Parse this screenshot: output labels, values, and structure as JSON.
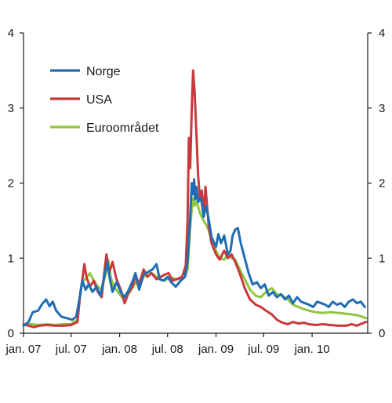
{
  "chart_data": {
    "type": "line",
    "title": "",
    "xlabel": "",
    "ylabel": "",
    "ylim": [
      0,
      4
    ],
    "yticks": [
      "0",
      "1",
      "2",
      "3",
      "4"
    ],
    "y_ticks_right": true,
    "xlim": [
      "2007-01-01",
      "2010-07-31"
    ],
    "xticks": [
      {
        "date": "2007-01-01",
        "label": "jan. 07"
      },
      {
        "date": "2007-07-01",
        "label": "jul. 07"
      },
      {
        "date": "2008-01-01",
        "label": "jan. 08"
      },
      {
        "date": "2008-07-01",
        "label": "jul. 08"
      },
      {
        "date": "2009-01-01",
        "label": "jan. 09"
      },
      {
        "date": "2009-07-01",
        "label": "jul. 09"
      },
      {
        "date": "2010-01-01",
        "label": "jan. 10"
      }
    ],
    "grid": false,
    "legend_position": "top-left",
    "series": [
      {
        "name": "Norge",
        "color": "#1f6eb5",
        "points": [
          [
            "2007-01-01",
            0.1
          ],
          [
            "2007-01-20",
            0.15
          ],
          [
            "2007-02-05",
            0.28
          ],
          [
            "2007-02-25",
            0.3
          ],
          [
            "2007-03-15",
            0.4
          ],
          [
            "2007-03-28",
            0.45
          ],
          [
            "2007-04-10",
            0.36
          ],
          [
            "2007-04-22",
            0.42
          ],
          [
            "2007-05-05",
            0.3
          ],
          [
            "2007-05-25",
            0.22
          ],
          [
            "2007-06-15",
            0.2
          ],
          [
            "2007-07-05",
            0.18
          ],
          [
            "2007-07-20",
            0.22
          ],
          [
            "2007-08-05",
            0.52
          ],
          [
            "2007-08-12",
            0.7
          ],
          [
            "2007-08-25",
            0.58
          ],
          [
            "2007-09-05",
            0.65
          ],
          [
            "2007-09-20",
            0.55
          ],
          [
            "2007-10-05",
            0.62
          ],
          [
            "2007-10-20",
            0.5
          ],
          [
            "2007-11-05",
            0.78
          ],
          [
            "2007-11-15",
            0.95
          ],
          [
            "2007-11-25",
            0.72
          ],
          [
            "2007-12-05",
            0.55
          ],
          [
            "2007-12-20",
            0.68
          ],
          [
            "2008-01-05",
            0.55
          ],
          [
            "2008-01-20",
            0.48
          ],
          [
            "2008-02-05",
            0.58
          ],
          [
            "2008-02-20",
            0.7
          ],
          [
            "2008-03-01",
            0.8
          ],
          [
            "2008-03-15",
            0.58
          ],
          [
            "2008-04-01",
            0.78
          ],
          [
            "2008-04-20",
            0.82
          ],
          [
            "2008-05-05",
            0.85
          ],
          [
            "2008-05-20",
            0.92
          ],
          [
            "2008-06-01",
            0.72
          ],
          [
            "2008-06-15",
            0.7
          ],
          [
            "2008-07-01",
            0.75
          ],
          [
            "2008-07-15",
            0.68
          ],
          [
            "2008-08-01",
            0.62
          ],
          [
            "2008-08-20",
            0.7
          ],
          [
            "2008-09-05",
            0.75
          ],
          [
            "2008-09-15",
            0.95
          ],
          [
            "2008-09-25",
            1.55
          ],
          [
            "2008-10-01",
            2.0
          ],
          [
            "2008-10-06",
            1.85
          ],
          [
            "2008-10-10",
            2.05
          ],
          [
            "2008-10-14",
            1.78
          ],
          [
            "2008-10-18",
            1.95
          ],
          [
            "2008-10-25",
            1.75
          ],
          [
            "2008-11-05",
            1.8
          ],
          [
            "2008-11-15",
            1.55
          ],
          [
            "2008-11-25",
            1.7
          ],
          [
            "2008-12-05",
            1.5
          ],
          [
            "2008-12-15",
            1.28
          ],
          [
            "2009-01-01",
            1.15
          ],
          [
            "2009-01-10",
            1.32
          ],
          [
            "2009-01-20",
            1.2
          ],
          [
            "2009-02-01",
            1.3
          ],
          [
            "2009-02-15",
            1.05
          ],
          [
            "2009-02-25",
            1.1
          ],
          [
            "2009-03-05",
            1.3
          ],
          [
            "2009-03-15",
            1.38
          ],
          [
            "2009-03-25",
            1.4
          ],
          [
            "2009-04-05",
            1.2
          ],
          [
            "2009-04-20",
            1.0
          ],
          [
            "2009-05-05",
            0.8
          ],
          [
            "2009-05-20",
            0.65
          ],
          [
            "2009-06-05",
            0.68
          ],
          [
            "2009-06-20",
            0.6
          ],
          [
            "2009-07-05",
            0.65
          ],
          [
            "2009-07-20",
            0.5
          ],
          [
            "2009-08-05",
            0.55
          ],
          [
            "2009-08-20",
            0.48
          ],
          [
            "2009-09-05",
            0.52
          ],
          [
            "2009-09-20",
            0.45
          ],
          [
            "2009-10-05",
            0.5
          ],
          [
            "2009-10-20",
            0.4
          ],
          [
            "2009-11-05",
            0.48
          ],
          [
            "2009-11-20",
            0.42
          ],
          [
            "2009-12-05",
            0.4
          ],
          [
            "2009-12-20",
            0.38
          ],
          [
            "2010-01-05",
            0.35
          ],
          [
            "2010-01-20",
            0.42
          ],
          [
            "2010-02-05",
            0.4
          ],
          [
            "2010-02-20",
            0.38
          ],
          [
            "2010-03-05",
            0.35
          ],
          [
            "2010-03-20",
            0.42
          ],
          [
            "2010-04-05",
            0.38
          ],
          [
            "2010-04-20",
            0.4
          ],
          [
            "2010-05-05",
            0.35
          ],
          [
            "2010-05-20",
            0.42
          ],
          [
            "2010-06-05",
            0.45
          ],
          [
            "2010-06-20",
            0.4
          ],
          [
            "2010-07-05",
            0.42
          ],
          [
            "2010-07-20",
            0.35
          ]
        ]
      },
      {
        "name": "USA",
        "color": "#c8383d",
        "points": [
          [
            "2007-01-01",
            0.12
          ],
          [
            "2007-01-20",
            0.1
          ],
          [
            "2007-02-10",
            0.08
          ],
          [
            "2007-03-01",
            0.1
          ],
          [
            "2007-04-01",
            0.11
          ],
          [
            "2007-05-01",
            0.1
          ],
          [
            "2007-06-01",
            0.1
          ],
          [
            "2007-07-01",
            0.11
          ],
          [
            "2007-07-25",
            0.15
          ],
          [
            "2007-08-05",
            0.55
          ],
          [
            "2007-08-12",
            0.7
          ],
          [
            "2007-08-20",
            0.92
          ],
          [
            "2007-08-28",
            0.75
          ],
          [
            "2007-09-10",
            0.62
          ],
          [
            "2007-09-25",
            0.7
          ],
          [
            "2007-10-10",
            0.55
          ],
          [
            "2007-10-25",
            0.48
          ],
          [
            "2007-11-05",
            0.85
          ],
          [
            "2007-11-12",
            1.05
          ],
          [
            "2007-11-22",
            0.8
          ],
          [
            "2007-12-05",
            0.95
          ],
          [
            "2007-12-20",
            0.72
          ],
          [
            "2008-01-05",
            0.58
          ],
          [
            "2008-01-20",
            0.4
          ],
          [
            "2008-02-05",
            0.55
          ],
          [
            "2008-02-20",
            0.62
          ],
          [
            "2008-03-01",
            0.78
          ],
          [
            "2008-03-15",
            0.65
          ],
          [
            "2008-04-01",
            0.85
          ],
          [
            "2008-04-15",
            0.75
          ],
          [
            "2008-05-01",
            0.8
          ],
          [
            "2008-05-20",
            0.72
          ],
          [
            "2008-06-05",
            0.75
          ],
          [
            "2008-06-20",
            0.78
          ],
          [
            "2008-07-05",
            0.8
          ],
          [
            "2008-07-20",
            0.7
          ],
          [
            "2008-08-05",
            0.72
          ],
          [
            "2008-08-25",
            0.75
          ],
          [
            "2008-09-08",
            0.9
          ],
          [
            "2008-09-15",
            1.5
          ],
          [
            "2008-09-20",
            2.6
          ],
          [
            "2008-09-25",
            2.2
          ],
          [
            "2008-10-01",
            3.0
          ],
          [
            "2008-10-06",
            3.5
          ],
          [
            "2008-10-12",
            3.2
          ],
          [
            "2008-10-18",
            2.7
          ],
          [
            "2008-10-25",
            2.1
          ],
          [
            "2008-11-01",
            1.8
          ],
          [
            "2008-11-08",
            1.9
          ],
          [
            "2008-11-15",
            1.6
          ],
          [
            "2008-11-22",
            1.95
          ],
          [
            "2008-11-28",
            1.7
          ],
          [
            "2008-12-05",
            1.4
          ],
          [
            "2008-12-15",
            1.2
          ],
          [
            "2009-01-01",
            1.05
          ],
          [
            "2009-01-15",
            0.98
          ],
          [
            "2009-02-01",
            1.1
          ],
          [
            "2009-02-15",
            1.0
          ],
          [
            "2009-03-01",
            1.05
          ],
          [
            "2009-03-15",
            0.95
          ],
          [
            "2009-04-01",
            0.8
          ],
          [
            "2009-04-20",
            0.6
          ],
          [
            "2009-05-10",
            0.45
          ],
          [
            "2009-06-01",
            0.38
          ],
          [
            "2009-06-20",
            0.35
          ],
          [
            "2009-07-10",
            0.3
          ],
          [
            "2009-08-01",
            0.25
          ],
          [
            "2009-08-20",
            0.18
          ],
          [
            "2009-09-10",
            0.14
          ],
          [
            "2009-10-01",
            0.12
          ],
          [
            "2009-10-20",
            0.15
          ],
          [
            "2009-11-10",
            0.13
          ],
          [
            "2009-12-01",
            0.14
          ],
          [
            "2009-12-20",
            0.12
          ],
          [
            "2010-01-15",
            0.11
          ],
          [
            "2010-02-10",
            0.12
          ],
          [
            "2010-03-10",
            0.11
          ],
          [
            "2010-04-10",
            0.1
          ],
          [
            "2010-05-10",
            0.1
          ],
          [
            "2010-06-01",
            0.12
          ],
          [
            "2010-06-20",
            0.1
          ],
          [
            "2010-07-10",
            0.13
          ],
          [
            "2010-07-25",
            0.15
          ]
        ]
      },
      {
        "name": "Euroområdet",
        "color": "#8dc63f",
        "points": [
          [
            "2007-01-01",
            0.12
          ],
          [
            "2007-02-01",
            0.12
          ],
          [
            "2007-03-01",
            0.11
          ],
          [
            "2007-04-01",
            0.12
          ],
          [
            "2007-05-01",
            0.11
          ],
          [
            "2007-06-01",
            0.12
          ],
          [
            "2007-07-01",
            0.12
          ],
          [
            "2007-07-25",
            0.18
          ],
          [
            "2007-08-05",
            0.55
          ],
          [
            "2007-08-15",
            0.7
          ],
          [
            "2007-08-25",
            0.72
          ],
          [
            "2007-09-10",
            0.8
          ],
          [
            "2007-09-25",
            0.7
          ],
          [
            "2007-10-10",
            0.62
          ],
          [
            "2007-10-25",
            0.58
          ],
          [
            "2007-11-10",
            0.8
          ],
          [
            "2007-11-18",
            0.98
          ],
          [
            "2007-11-28",
            0.75
          ],
          [
            "2007-12-10",
            0.62
          ],
          [
            "2007-12-25",
            0.55
          ],
          [
            "2008-01-10",
            0.48
          ],
          [
            "2008-01-25",
            0.5
          ],
          [
            "2008-02-10",
            0.55
          ],
          [
            "2008-03-01",
            0.68
          ],
          [
            "2008-03-15",
            0.62
          ],
          [
            "2008-04-01",
            0.75
          ],
          [
            "2008-04-20",
            0.82
          ],
          [
            "2008-05-10",
            0.78
          ],
          [
            "2008-06-01",
            0.72
          ],
          [
            "2008-06-20",
            0.7
          ],
          [
            "2008-07-10",
            0.75
          ],
          [
            "2008-08-01",
            0.72
          ],
          [
            "2008-08-20",
            0.72
          ],
          [
            "2008-09-05",
            0.75
          ],
          [
            "2008-09-15",
            0.85
          ],
          [
            "2008-09-25",
            1.4
          ],
          [
            "2008-10-01",
            1.65
          ],
          [
            "2008-10-06",
            1.8
          ],
          [
            "2008-10-12",
            1.7
          ],
          [
            "2008-10-20",
            1.75
          ],
          [
            "2008-11-01",
            1.6
          ],
          [
            "2008-11-15",
            1.5
          ],
          [
            "2008-12-01",
            1.4
          ],
          [
            "2008-12-15",
            1.25
          ],
          [
            "2009-01-01",
            1.1
          ],
          [
            "2009-01-15",
            1.0
          ],
          [
            "2009-02-01",
            0.98
          ],
          [
            "2009-02-15",
            1.05
          ],
          [
            "2009-03-01",
            1.0
          ],
          [
            "2009-03-15",
            0.98
          ],
          [
            "2009-04-01",
            0.85
          ],
          [
            "2009-04-20",
            0.72
          ],
          [
            "2009-05-10",
            0.58
          ],
          [
            "2009-06-01",
            0.5
          ],
          [
            "2009-06-20",
            0.48
          ],
          [
            "2009-07-10",
            0.55
          ],
          [
            "2009-08-01",
            0.6
          ],
          [
            "2009-08-20",
            0.52
          ],
          [
            "2009-09-10",
            0.5
          ],
          [
            "2009-10-01",
            0.45
          ],
          [
            "2009-10-20",
            0.38
          ],
          [
            "2009-11-10",
            0.35
          ],
          [
            "2009-12-01",
            0.32
          ],
          [
            "2009-12-20",
            0.3
          ],
          [
            "2010-01-15",
            0.28
          ],
          [
            "2010-02-10",
            0.27
          ],
          [
            "2010-03-10",
            0.28
          ],
          [
            "2010-04-10",
            0.27
          ],
          [
            "2010-05-10",
            0.26
          ],
          [
            "2010-06-01",
            0.25
          ],
          [
            "2010-06-20",
            0.24
          ],
          [
            "2010-07-10",
            0.22
          ],
          [
            "2010-07-25",
            0.2
          ]
        ]
      }
    ]
  }
}
